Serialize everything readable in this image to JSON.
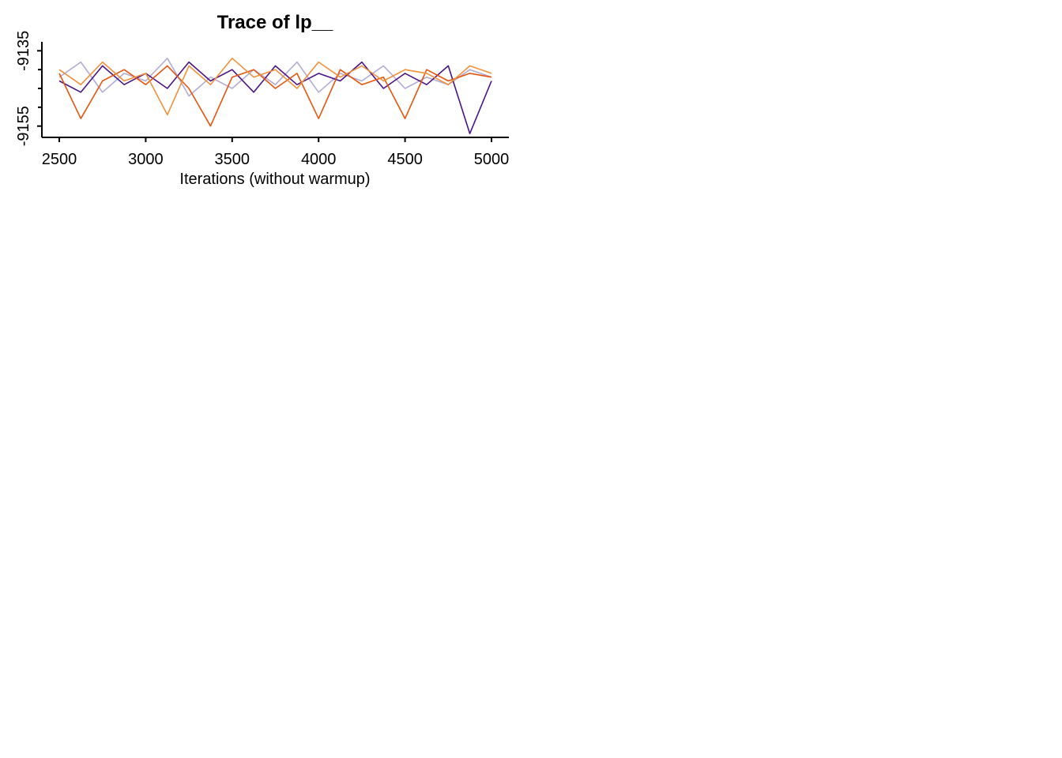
{
  "chart_data": {
    "type": "line",
    "title": "Trace of  lp__",
    "xlabel": "Iterations (without warmup)",
    "ylabel": "",
    "xlim": [
      2500,
      5000
    ],
    "ylim": [
      -9158,
      -9132
    ],
    "xticks": [
      2500,
      3000,
      3500,
      4000,
      4500,
      5000
    ],
    "xtick_labels": [
      "2500",
      "3000",
      "3500",
      "4000",
      "4500",
      "5000"
    ],
    "yticks": [
      -9135,
      -9155
    ],
    "ytick_labels": [
      "-9135",
      "-9155"
    ],
    "y_minor_ticks": [
      -9140,
      -9145,
      -9150
    ],
    "grid": false,
    "legend": "none",
    "series_colors": [
      "#b1acd5",
      "#4a1486",
      "#e6550d",
      "#f0913a"
    ],
    "series": [
      {
        "color": "#b1acd5",
        "x": [
          2500,
          2625,
          2750,
          2875,
          3000,
          3125,
          3250,
          3375,
          3500,
          3625,
          3750,
          3875,
          4000,
          4125,
          4250,
          4375,
          4500,
          4625,
          4750,
          4875,
          5000
        ],
        "values": [
          -9142,
          -9138,
          -9146,
          -9141,
          -9143,
          -9137,
          -9147,
          -9142,
          -9145,
          -9140,
          -9144,
          -9138,
          -9146,
          -9141,
          -9143,
          -9139,
          -9145,
          -9142,
          -9144,
          -9140,
          -9142
        ]
      },
      {
        "color": "#4a1486",
        "x": [
          2500,
          2625,
          2750,
          2875,
          3000,
          3125,
          3250,
          3375,
          3500,
          3625,
          3750,
          3875,
          4000,
          4125,
          4250,
          4375,
          4500,
          4625,
          4750,
          4875,
          5000
        ],
        "values": [
          -9143,
          -9146,
          -9139,
          -9144,
          -9141,
          -9145,
          -9138,
          -9143,
          -9140,
          -9146,
          -9139,
          -9144,
          -9141,
          -9143,
          -9138,
          -9145,
          -9141,
          -9144,
          -9139,
          -9157,
          -9143
        ]
      },
      {
        "color": "#e6550d",
        "x": [
          2500,
          2625,
          2750,
          2875,
          3000,
          3125,
          3250,
          3375,
          3500,
          3625,
          3750,
          3875,
          4000,
          4125,
          4250,
          4375,
          4500,
          4625,
          4750,
          4875,
          5000
        ],
        "values": [
          -9141,
          -9153,
          -9143,
          -9140,
          -9144,
          -9139,
          -9145,
          -9155,
          -9142,
          -9140,
          -9145,
          -9141,
          -9153,
          -9140,
          -9144,
          -9142,
          -9153,
          -9140,
          -9143,
          -9141,
          -9142
        ]
      },
      {
        "color": "#f0913a",
        "x": [
          2500,
          2625,
          2750,
          2875,
          3000,
          3125,
          3250,
          3375,
          3500,
          3625,
          3750,
          3875,
          4000,
          4125,
          4250,
          4375,
          4500,
          4625,
          4750,
          4875,
          5000
        ],
        "values": [
          -9140,
          -9144,
          -9138,
          -9143,
          -9141,
          -9152,
          -9139,
          -9144,
          -9137,
          -9142,
          -9140,
          -9145,
          -9138,
          -9142,
          -9139,
          -9143,
          -9140,
          -9141,
          -9144,
          -9139,
          -9141
        ]
      }
    ]
  }
}
